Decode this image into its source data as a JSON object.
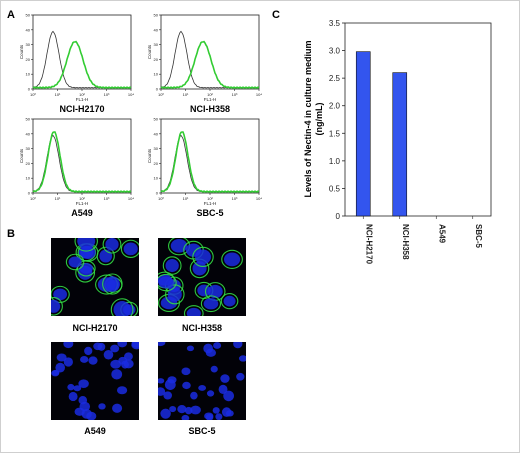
{
  "figure": {
    "panel_labels": {
      "a": "A",
      "b": "B",
      "c": "C"
    }
  },
  "flow_panels": [
    {
      "sample": "NCI-H2170",
      "axis_y": "Counts",
      "axis_x": "FL1-H",
      "tick_x": [
        "10⁰",
        "10¹",
        "10²",
        "10³",
        "10⁴"
      ],
      "tick_y": [
        "0",
        "10",
        "20",
        "30",
        "40",
        "50"
      ],
      "shifted": true
    },
    {
      "sample": "NCI-H358",
      "axis_y": "Counts",
      "axis_x": "FL1-H",
      "tick_x": [
        "10⁰",
        "10¹",
        "10²",
        "10³",
        "10⁴"
      ],
      "tick_y": [
        "0",
        "10",
        "20",
        "30",
        "40",
        "50"
      ],
      "shifted": true
    },
    {
      "sample": "A549",
      "axis_y": "Counts",
      "axis_x": "FL1-H",
      "tick_x": [
        "10⁰",
        "10¹",
        "10²",
        "10³",
        "10⁴"
      ],
      "tick_y": [
        "0",
        "10",
        "20",
        "30",
        "40",
        "50"
      ],
      "shifted": false
    },
    {
      "sample": "SBC-5",
      "axis_y": "Counts",
      "axis_x": "FL1-H",
      "tick_x": [
        "10⁰",
        "10¹",
        "10²",
        "10³",
        "10⁴"
      ],
      "tick_y": [
        "0",
        "10",
        "20",
        "30",
        "40",
        "50"
      ],
      "shifted": false
    }
  ],
  "micro_panels": [
    {
      "sample": "NCI-H2170",
      "membrane_stain": true
    },
    {
      "sample": "NCI-H358",
      "membrane_stain": true
    },
    {
      "sample": "A549",
      "membrane_stain": false
    },
    {
      "sample": "SBC-5",
      "membrane_stain": false
    }
  ],
  "colors": {
    "control": "#333333",
    "stained": "#33cc33",
    "bar": "#3355ee",
    "nuclei": "#1a2ce0",
    "membrane": "#33dd44"
  },
  "chart_data": {
    "type": "bar",
    "categories": [
      "NCI-H2170",
      "NCI-H358",
      "A549",
      "SBC-5"
    ],
    "values": [
      2.98,
      2.6,
      0,
      0
    ],
    "ylabel": "Levels of Nectin-4 in culture medium (ng/mL)",
    "ylabel_lines": [
      "Levels of Nectin-4 in culture medium",
      "(ng/mL)"
    ],
    "ylim": [
      0,
      3.5
    ],
    "yticks": [
      "0",
      "0.5",
      "1.0",
      "1.5",
      "2.0",
      "2.5",
      "3.0",
      "3.5"
    ],
    "grid": false
  }
}
